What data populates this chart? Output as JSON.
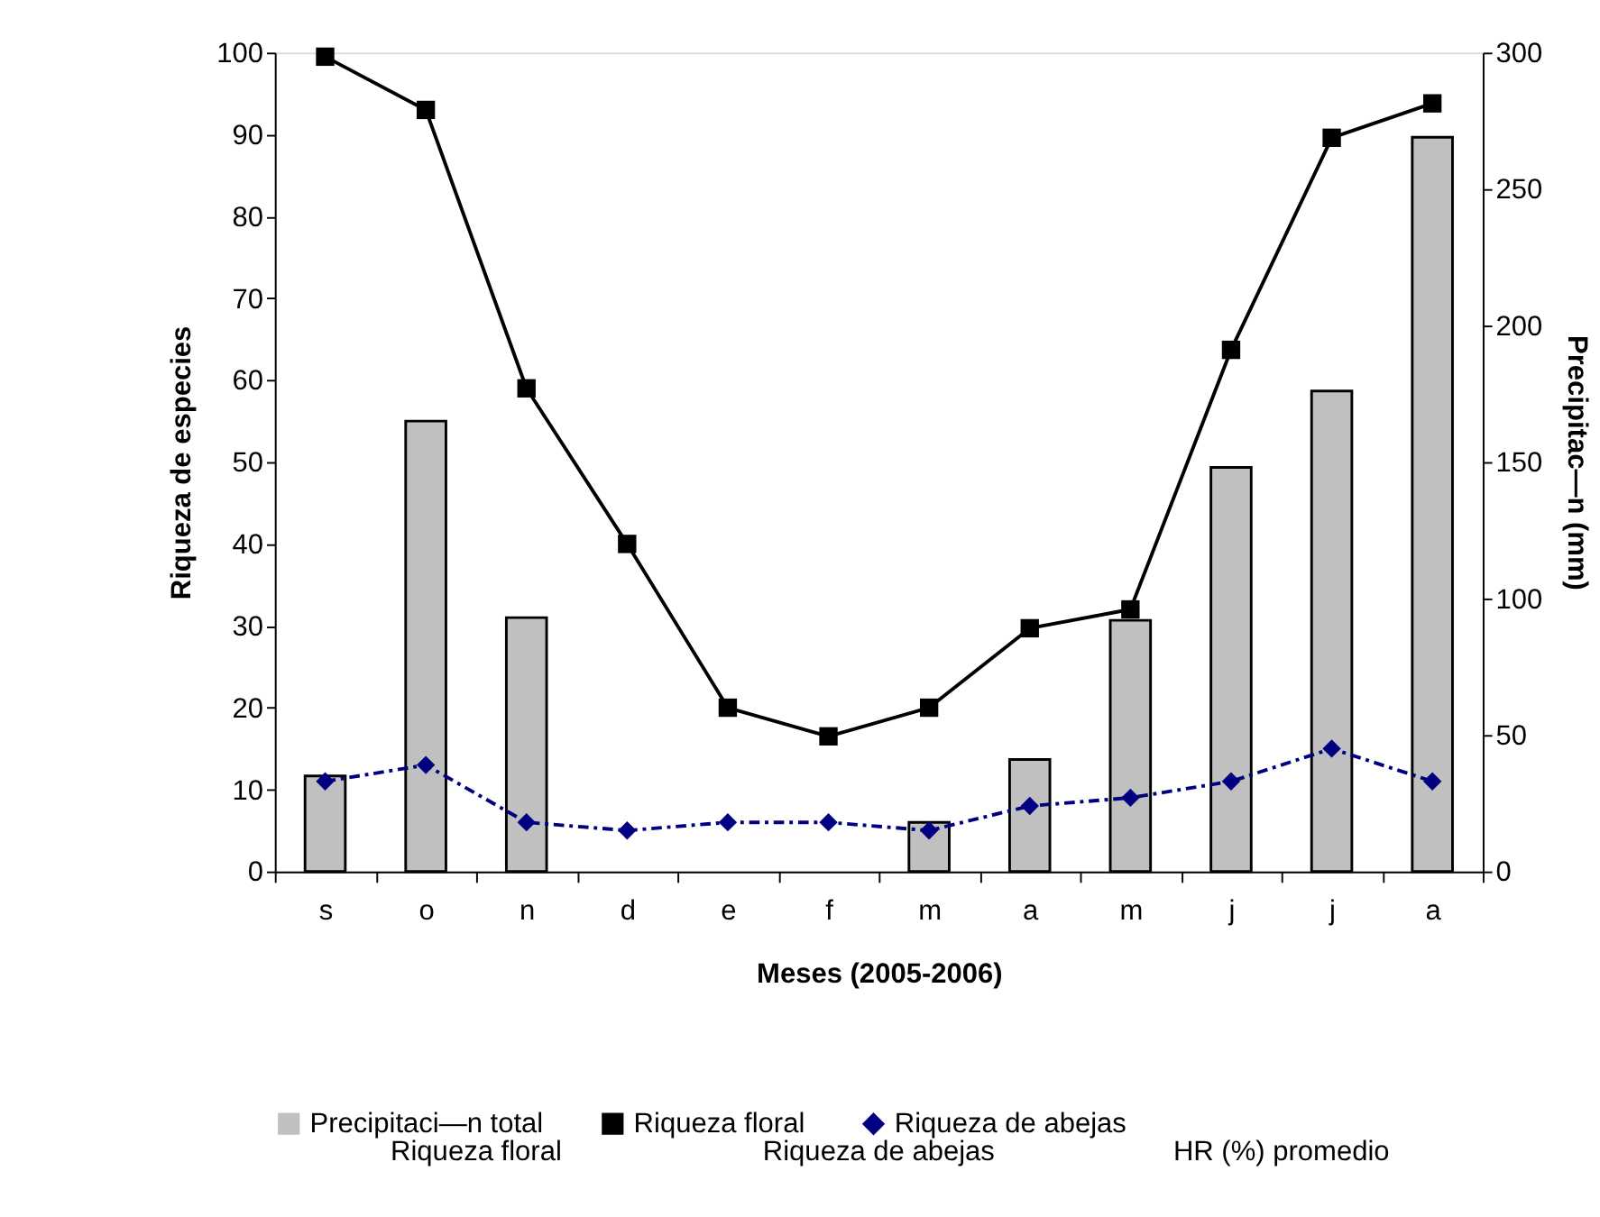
{
  "chart_data": {
    "type": "bar",
    "xlabel": "Meses (2005-2006)",
    "ylabel": "Riqueza de especies",
    "y2label": "Precipitac—n (mm)",
    "categories": [
      "s",
      "o",
      "n",
      "d",
      "e",
      "f",
      "m",
      "a",
      "m",
      "j",
      "j",
      "a"
    ],
    "series": [
      {
        "name": "Precipitaci—n total",
        "axis": "y2",
        "color": "#c0c0c0",
        "values": [
          35,
          165,
          93,
          null,
          null,
          null,
          18,
          41,
          92,
          148,
          176,
          269
        ]
      },
      {
        "name": "Riqueza floral",
        "type": "line",
        "color": "#000000",
        "marker": "square",
        "line_style": "solid",
        "values": [
          99.5,
          93,
          59,
          40,
          20,
          16.5,
          20,
          29.7,
          32,
          63.7,
          89.6,
          93.8
        ]
      },
      {
        "name": "Riqueza de abejas",
        "type": "line",
        "color": "#000080",
        "marker": "diamond",
        "line_style": "dashed",
        "values": [
          11,
          13,
          6,
          5,
          6,
          6,
          5,
          8,
          9,
          11,
          15,
          11
        ]
      }
    ],
    "ylim": [
      0,
      100
    ],
    "yticks": [
      0,
      10,
      20,
      30,
      40,
      50,
      60,
      70,
      80,
      90,
      100
    ],
    "y2lim": [
      0,
      300
    ],
    "y2ticks": [
      0,
      50,
      100,
      150,
      200,
      250,
      300
    ],
    "grid": false,
    "legend": "bottom",
    "annotations": [
      "Riqueza floral",
      "Riqueza de abejas",
      "HR (%) promedio"
    ]
  }
}
